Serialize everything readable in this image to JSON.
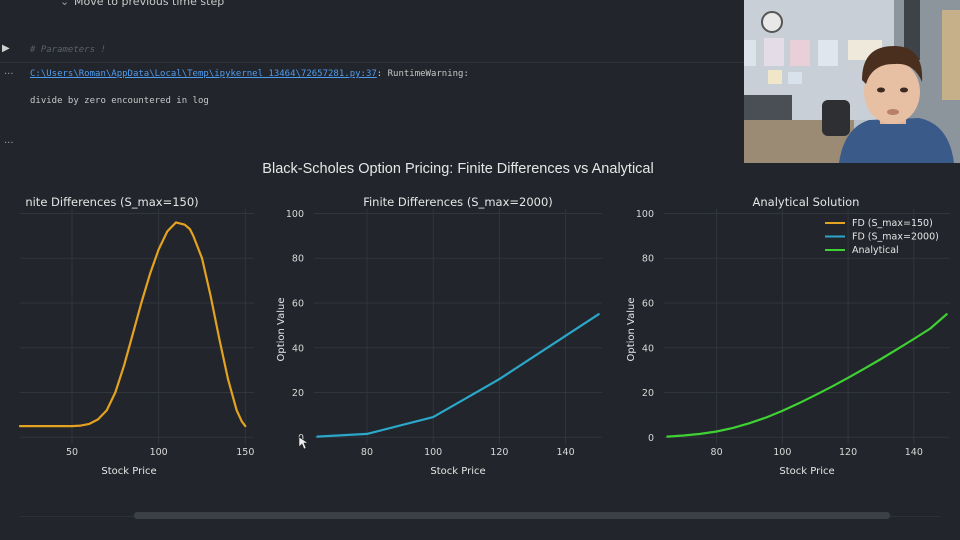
{
  "notebook": {
    "top_line": "Move to previous time step",
    "comment": "# Parameters !",
    "warning_path": "C:\\Users\\Roman\\AppData\\Local\\Temp\\ipykernel_13464\\72657281.py:37",
    "warning_type": ": RuntimeWarning:",
    "warning_message": "divide by zero encountered in log",
    "ellipsis": "..."
  },
  "chart_data": {
    "title": "Black-Scholes Option Pricing: Finite Differences vs Analytical",
    "panels": [
      {
        "type": "line",
        "title": "nite Differences (S_max=150)",
        "xlabel": "Stock Price",
        "ylabel": "",
        "xlim": [
          20,
          155
        ],
        "ylim": [
          -3,
          102
        ],
        "xticks": [
          50,
          100,
          150
        ],
        "yticks": [],
        "series": [
          {
            "name": "FD (S_max=150)",
            "color": "#e3a21f",
            "x": [
              20,
              30,
              40,
              50,
              55,
              60,
              65,
              70,
              75,
              80,
              85,
              90,
              95,
              100,
              105,
              110,
              115,
              118,
              120,
              125,
              130,
              135,
              140,
              145,
              148,
              150
            ],
            "y": [
              5,
              5,
              5,
              5,
              5.2,
              6,
              8,
              12,
              20,
              32,
              46,
              60,
              73,
              84,
              92,
              96,
              95,
              93,
              90,
              80,
              63,
              44,
              26,
              12,
              7,
              5
            ]
          }
        ]
      },
      {
        "type": "line",
        "title": "Finite Differences (S_max=2000)",
        "xlabel": "Stock Price",
        "ylabel": "Option Value",
        "xlim": [
          64,
          151
        ],
        "ylim": [
          -3,
          102
        ],
        "xticks": [
          80,
          100,
          120,
          140
        ],
        "yticks": [
          0,
          20,
          40,
          60,
          80,
          100
        ],
        "series": [
          {
            "name": "FD (S_max=2000)",
            "color": "#2aa7c9",
            "x": [
              65,
              80,
              100,
              120,
              150
            ],
            "y": [
              0.3,
              1.5,
              9,
              26,
              55
            ]
          }
        ]
      },
      {
        "type": "line",
        "title": "Analytical Solution",
        "xlabel": "Stock Price",
        "ylabel": "Option Value",
        "xlim": [
          64,
          151
        ],
        "ylim": [
          -3,
          102
        ],
        "xticks": [
          80,
          100,
          120,
          140
        ],
        "yticks": [
          0,
          20,
          40,
          60,
          80,
          100
        ],
        "series": [
          {
            "name": "Analytical",
            "color": "#3fd133",
            "x": [
              65,
              70,
              75,
              80,
              85,
              90,
              95,
              100,
              105,
              110,
              115,
              120,
              125,
              130,
              135,
              140,
              145,
              150
            ],
            "y": [
              0.3,
              0.8,
              1.5,
              2.6,
              4.2,
              6.3,
              8.8,
              11.8,
              15.2,
              18.8,
              22.6,
              26.6,
              30.7,
              35,
              39.4,
              43.9,
              48.6,
              55
            ]
          }
        ]
      }
    ],
    "legend": {
      "placement": "top-right",
      "entries": [
        {
          "label": "FD (S_max=150)",
          "color": "#e3a21f"
        },
        {
          "label": "FD (S_max=2000)",
          "color": "#2aa7c9"
        },
        {
          "label": "Analytical",
          "color": "#3fd133"
        }
      ]
    },
    "grid": true
  },
  "theme": {
    "background": "#22252b",
    "grid": "#31353c",
    "text": "#e6e6e6",
    "tick_text": "#d8d8d8"
  }
}
